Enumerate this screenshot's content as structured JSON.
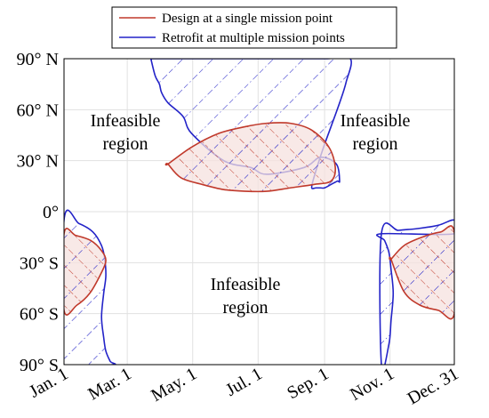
{
  "chart_data": {
    "type": "area",
    "title": "",
    "xlabel": "",
    "ylabel": "",
    "grid": true,
    "legend_position": "top-center",
    "x_range": [
      "Jan. 1",
      "Dec. 31"
    ],
    "y_range_deg": [
      -90,
      90
    ],
    "x_ticks": [
      "Jan. 1",
      "Mar. 1",
      "May. 1",
      "Jul. 1",
      "Sep. 1",
      "Nov. 1",
      "Dec. 31"
    ],
    "x_tick_days": [
      1,
      60,
      121,
      182,
      244,
      305,
      365
    ],
    "y_ticks": [
      {
        "label": "90° N",
        "value": 90
      },
      {
        "label": "60° N",
        "value": 60
      },
      {
        "label": "30° N",
        "value": 30
      },
      {
        "label": "0°",
        "value": 0
      },
      {
        "label": "30° S",
        "value": -30
      },
      {
        "label": "60° S",
        "value": -60
      },
      {
        "label": "90° S",
        "value": -90
      }
    ],
    "colors": {
      "design": "#c0392b",
      "retrofit": "#2323c8",
      "design_fill": "#f6e1df",
      "grid": "#e1e1e1"
    },
    "series": [
      {
        "name": "Design at a single mission point",
        "regions": [
          {
            "id": "design-north",
            "x": [
              98,
              120,
              145,
              170,
              190,
              212,
              232,
              248,
              254,
              250,
              234,
              212,
              190,
              170,
              150,
              130,
              110,
              98
            ],
            "y": [
              28,
              38,
              46,
              50,
              52,
              52,
              48,
              38,
              26,
              18,
              16,
              14,
              12,
              12,
              13,
              16,
              20,
              28
            ]
          },
          {
            "id": "design-south",
            "x": [
              1,
              12,
              26,
              36,
              40,
              35,
              25,
              13,
              1
            ],
            "y": [
              -13,
              -14,
              -17,
              -23,
              -29,
              -37,
              -48,
              -55,
              -58
            ]
          },
          {
            "id": "design-southeast",
            "x": [
              306,
              318,
              335,
              352,
              365,
              365,
              350,
              333,
              318,
              306
            ],
            "y": [
              -28,
              -20,
              -15,
              -12,
              -12,
              -60,
              -58,
              -55,
              -47,
              -28
            ]
          }
        ]
      },
      {
        "name": "Retrofit at multiple mission points",
        "regions": [
          {
            "id": "retrofit-north",
            "x": [
              82,
              86,
              90,
              92,
              98,
              112,
              120,
              150,
              175,
              190,
              225,
              240,
              255,
              258,
              256,
              250,
              244,
              240,
              236,
              232,
              234,
              242,
              250,
              258,
              264,
              268,
              245,
              212,
              180,
              150,
              120,
              98,
              88,
              82
            ],
            "y": [
              90,
              80,
              75,
              70,
              64,
              56,
              46,
              30,
              26,
              22,
              26,
              32,
              28,
              18,
              18,
              16,
              14,
              14,
              14,
              14,
              20,
              36,
              50,
              64,
              76,
              90,
              90,
              90,
              90,
              90,
              90,
              90,
              90,
              90
            ],
            "note": "upper north bounding curve"
          },
          {
            "id": "retrofit-south",
            "x": [
              1,
              15,
              28,
              36,
              39,
              40,
              38,
              36,
              38,
              40,
              44,
              46,
              1
            ],
            "y": [
              -5,
              -7,
              -12,
              -20,
              -28,
              -38,
              -48,
              -62,
              -74,
              -82,
              -88,
              -90,
              -90
            ]
          },
          {
            "id": "retrofit-southeast",
            "x": [
              297,
              304,
              306,
              308,
              306,
              304,
              300,
              297,
              365,
              365,
              350,
              330,
              313,
              297
            ],
            "y": [
              -90,
              -78,
              -64,
              -48,
              -34,
              -24,
              -17,
              -13,
              -13,
              -5,
              -8,
              -10,
              -11,
              -13
            ]
          }
        ]
      }
    ],
    "annotations": [
      {
        "id": "nw",
        "lines": [
          "Infeasible",
          "region"
        ]
      },
      {
        "id": "ne",
        "lines": [
          "Infeasible",
          "region"
        ]
      },
      {
        "id": "south",
        "lines": [
          "Infeasible",
          "region"
        ]
      }
    ]
  },
  "legend": {
    "design_label": "Design at a single mission point",
    "retrofit_label": "Retrofit at multiple mission points"
  }
}
